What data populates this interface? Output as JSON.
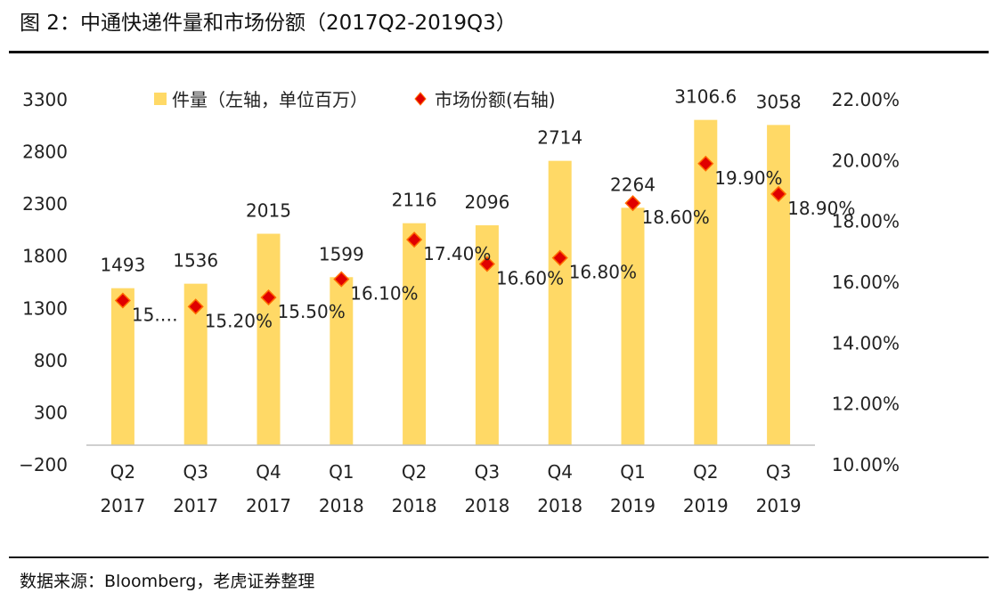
{
  "header": {
    "title": "图 2：中通快递件量和市场份额（2017Q2-2019Q3）"
  },
  "footer": {
    "source": "数据来源：Bloomberg，老虎证券整理"
  },
  "colors": {
    "bar": "#FFD966",
    "marker": "#E00000",
    "marker_stroke": "#FF6A00",
    "axis": "#bfbfbf",
    "text": "#222222"
  },
  "chart_data": {
    "type": "bar",
    "categories": [
      [
        "Q2",
        "2017"
      ],
      [
        "Q3",
        "2017"
      ],
      [
        "Q4",
        "2017"
      ],
      [
        "Q1",
        "2018"
      ],
      [
        "Q2",
        "2018"
      ],
      [
        "Q3",
        "2018"
      ],
      [
        "Q4",
        "2018"
      ],
      [
        "Q1",
        "2019"
      ],
      [
        "Q2",
        "2019"
      ],
      [
        "Q3",
        "2019"
      ]
    ],
    "series": [
      {
        "name": "件量（左轴，单位百万）",
        "type": "bar",
        "axis": "left",
        "values": [
          1493,
          1536,
          2015,
          1599,
          2116,
          2096,
          2714,
          2264,
          3106.6,
          3058
        ],
        "labels": [
          "1493",
          "1536",
          "2015",
          "1599",
          "2116",
          "2096",
          "2714",
          "2264",
          "3106.6",
          "3058"
        ]
      },
      {
        "name": "市场份额(右轴)",
        "type": "scatter",
        "axis": "right",
        "values": [
          15.4,
          15.2,
          15.5,
          16.1,
          17.4,
          16.6,
          16.8,
          18.6,
          19.9,
          18.9
        ],
        "labels": [
          "15.…",
          "15.20%",
          "15.50%",
          "16.10%",
          "17.40%",
          "16.60%",
          "16.80%",
          "18.60%",
          "19.90%",
          "18.90%"
        ]
      }
    ],
    "y_left": {
      "min": -200,
      "max": 3300,
      "ticks": [
        "3300",
        "2800",
        "2300",
        "1800",
        "1300",
        "800",
        "300",
        "−200"
      ]
    },
    "y_right": {
      "min": 10,
      "max": 22,
      "ticks": [
        "22.00%",
        "20.00%",
        "18.00%",
        "16.00%",
        "14.00%",
        "12.00%",
        "10.00%"
      ]
    },
    "legend_position": "top",
    "grid": false
  }
}
